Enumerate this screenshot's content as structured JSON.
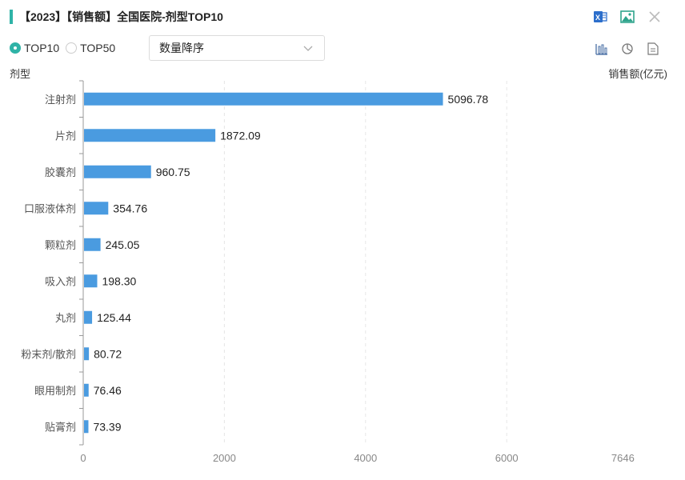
{
  "header": {
    "title": "【2023】【销售额】全国医院-剂型TOP10",
    "tools": [
      "excel-icon",
      "image-icon",
      "close-icon"
    ]
  },
  "controls": {
    "radios": [
      {
        "label": "TOP10",
        "selected": true
      },
      {
        "label": "TOP50",
        "selected": false
      }
    ],
    "sort_select": "数量降序",
    "view_icons": [
      "bar-chart-icon",
      "pie-chart-icon",
      "table-icon"
    ]
  },
  "colors": {
    "accent": "#2fb3a7",
    "bar": "#4a9be0"
  },
  "chart_data": {
    "type": "bar",
    "orientation": "horizontal",
    "title": "",
    "ylabel": "剂型",
    "xlabel": "销售额(亿元)",
    "categories": [
      "注射剂",
      "片剂",
      "胶囊剂",
      "口服液体剂",
      "颗粒剂",
      "吸入剂",
      "丸剂",
      "粉末剂/散剂",
      "眼用制剂",
      "贴膏剂"
    ],
    "values": [
      5096.78,
      1872.09,
      960.75,
      354.76,
      245.05,
      198.3,
      125.44,
      80.72,
      76.46,
      73.39
    ],
    "value_labels": [
      "5096.78",
      "1872.09",
      "960.75",
      "354.76",
      "245.05",
      "198.30",
      "125.44",
      "80.72",
      "76.46",
      "73.39"
    ],
    "xticks": [
      "0",
      "2000",
      "4000",
      "6000",
      "7646"
    ],
    "xlim": [
      0,
      7646
    ],
    "grid": true
  }
}
